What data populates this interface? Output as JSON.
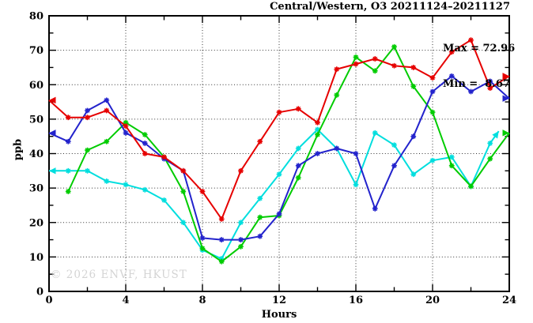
{
  "title": "Central/Western, O3 20211124–20211127",
  "annotation": {
    "max_label": "Max = 72.96",
    "min_label": "Min =  8.67"
  },
  "watermark": "© 2026 ENVF, HKUST",
  "axes": {
    "xlabel": "Hours",
    "ylabel": "ppb",
    "xlim": [
      0,
      24
    ],
    "ylim": [
      0,
      80
    ],
    "x_tick_labels": [
      0,
      4,
      8,
      12,
      16,
      20,
      24
    ],
    "x_minor_step": 2,
    "y_tick_labels": [
      0,
      10,
      20,
      30,
      40,
      50,
      60,
      70,
      80
    ],
    "y_minor_step": 5,
    "grid": "dotted-on-major"
  },
  "chart_data": {
    "type": "line",
    "title": "Central/Western, O3 20211124–20211127",
    "xlabel": "Hours",
    "ylabel": "ppb",
    "xlim": [
      0,
      24
    ],
    "ylim": [
      0,
      80
    ],
    "max_value": 72.96,
    "min_value": 8.67,
    "x": [
      0,
      1,
      2,
      3,
      4,
      5,
      6,
      7,
      8,
      9,
      10,
      11,
      12,
      13,
      14,
      15,
      16,
      17,
      18,
      19,
      20,
      21,
      22,
      23,
      24
    ],
    "series": [
      {
        "name": "cyan",
        "color": "#00dede",
        "start_arrow": true,
        "end_arrow": false,
        "tail": [
          23.45,
          46.5
        ],
        "values": [
          35,
          35,
          35,
          32,
          31,
          29.5,
          26.5,
          20,
          12,
          9.5,
          20,
          27,
          34,
          41.5,
          47,
          41.5,
          31,
          46,
          42.5,
          34,
          38,
          39,
          30.5,
          43,
          null
        ]
      },
      {
        "name": "green",
        "color": "#00cc00",
        "start_arrow": false,
        "end_arrow": true,
        "values": [
          null,
          29,
          41,
          43.5,
          49,
          45.5,
          39,
          29,
          12.5,
          8.67,
          13,
          21.5,
          22,
          33,
          45.5,
          57,
          68,
          64,
          71,
          59.5,
          52,
          36.5,
          30.5,
          38.5,
          46
        ]
      },
      {
        "name": "blue",
        "color": "#2323cc",
        "start_arrow": true,
        "end_arrow": true,
        "values": [
          46,
          43.5,
          52.5,
          55.5,
          46,
          43,
          38.5,
          35,
          15.5,
          15,
          15,
          16,
          22.5,
          36.5,
          40,
          41.5,
          40,
          24,
          36.5,
          45,
          58,
          62.5,
          58,
          61,
          56
        ]
      },
      {
        "name": "red",
        "color": "#e60000",
        "start_arrow": true,
        "end_arrow": true,
        "values": [
          55.5,
          50.5,
          50.5,
          52.5,
          48,
          40,
          39,
          35,
          29,
          21,
          35,
          43.5,
          52,
          53,
          49,
          64.5,
          66,
          67.5,
          65.5,
          65,
          62,
          69.5,
          72.96,
          59,
          62.5
        ]
      }
    ]
  }
}
